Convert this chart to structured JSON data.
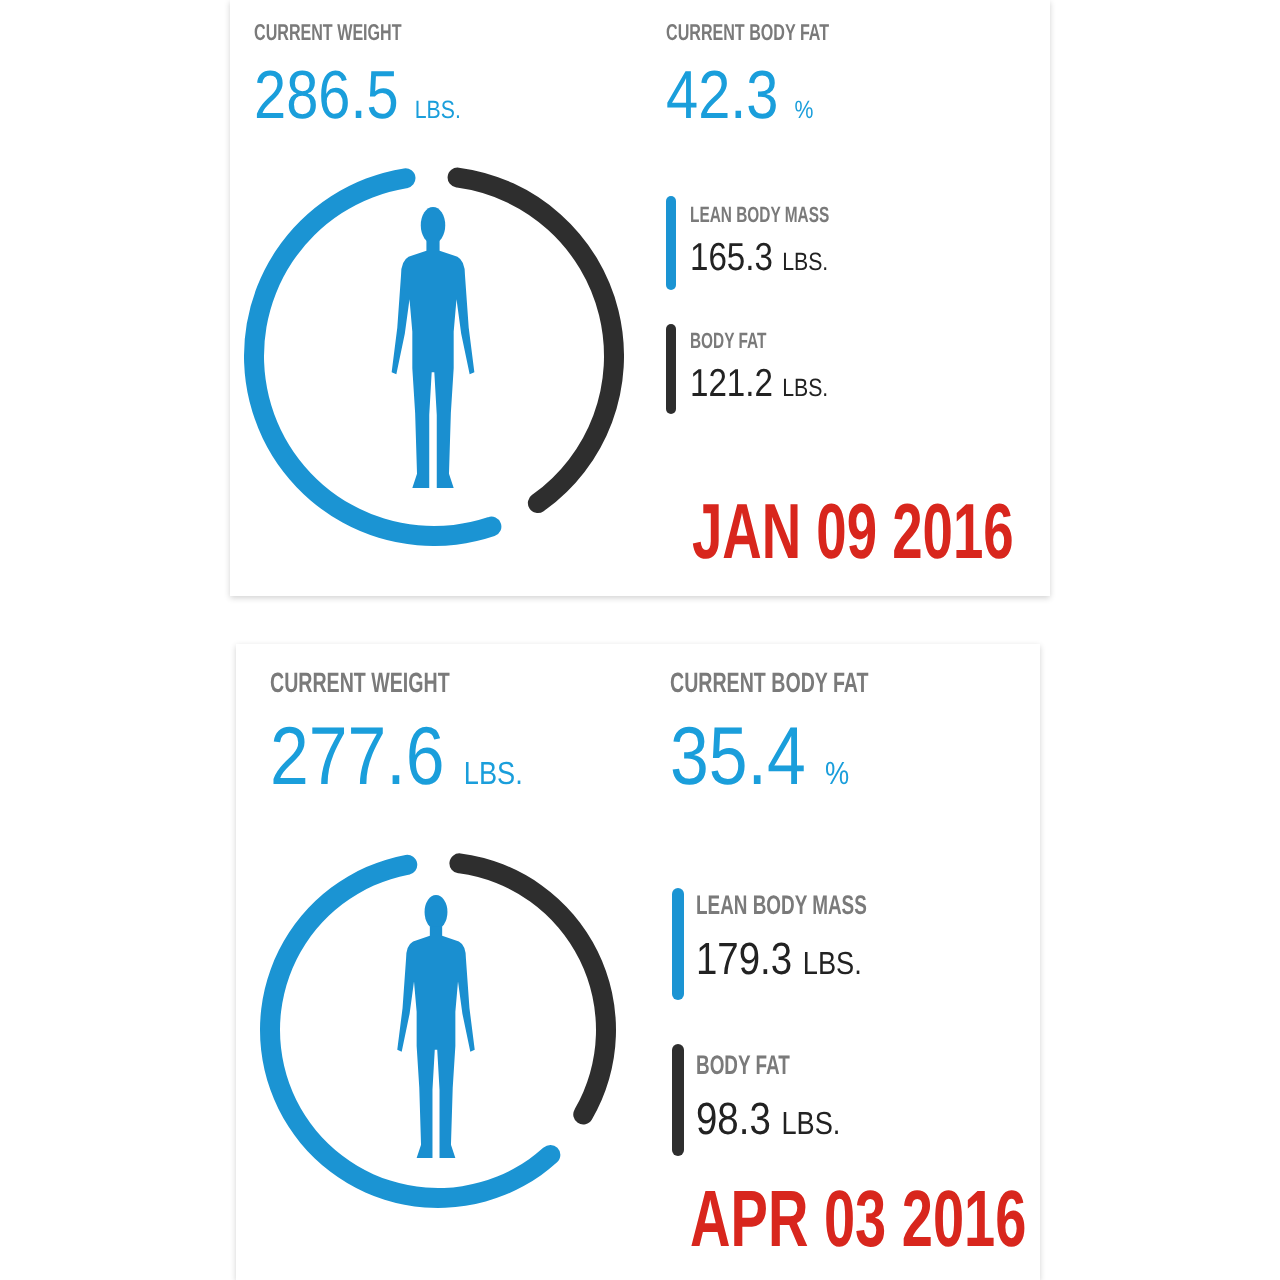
{
  "chart_data": [
    {
      "type": "donut",
      "title": "JAN 09 2016",
      "annotations": [
        "CURRENT WEIGHT",
        "286.5 LBS.",
        "CURRENT BODY FAT",
        "42.3 %"
      ],
      "categories": [
        "LEAN BODY MASS",
        "BODY FAT"
      ],
      "values": [
        165.3,
        121.2
      ],
      "colors": [
        "#1b94d3",
        "#2e2e2e"
      ],
      "value_labels": [
        "165.3 LBS.",
        "121.2 LBS."
      ],
      "legend": "right"
    },
    {
      "type": "donut",
      "title": "APR 03 2016",
      "annotations": [
        "CURRENT WEIGHT",
        "277.6 LBS.",
        "CURRENT BODY FAT",
        "35.4 %"
      ],
      "categories": [
        "LEAN BODY MASS",
        "BODY FAT"
      ],
      "values": [
        179.3,
        98.3
      ],
      "colors": [
        "#1b94d3",
        "#2e2e2e"
      ],
      "value_labels": [
        "179.3 LBS.",
        "98.3 LBS."
      ],
      "legend": "right"
    }
  ]
}
